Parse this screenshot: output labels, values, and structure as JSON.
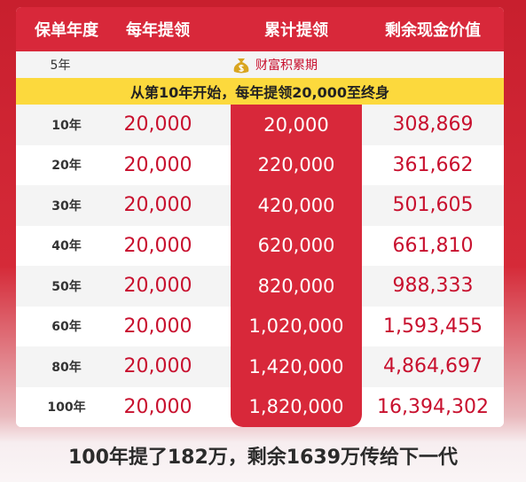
{
  "header": [
    "保单年度",
    "每年提领",
    "累计提领",
    "剩余现金价值"
  ],
  "phase_row": {
    "year": "5年",
    "label": "财富积累期"
  },
  "banner": "从第10年开始，每年提领20,000至终身",
  "rows": [
    [
      "10年",
      "20,000",
      "20,000",
      "308,869"
    ],
    [
      "20年",
      "20,000",
      "220,000",
      "361,662"
    ],
    [
      "30年",
      "20,000",
      "420,000",
      "501,605"
    ],
    [
      "40年",
      "20,000",
      "620,000",
      "661,810"
    ],
    [
      "50年",
      "20,000",
      "820,000",
      "988,333"
    ],
    [
      "60年",
      "20,000",
      "1,020,000",
      "1,593,455"
    ],
    [
      "80年",
      "20,000",
      "1,420,000",
      "4,864,697"
    ],
    [
      "100年",
      "20,000",
      "1,820,000",
      "16,394,302"
    ]
  ],
  "footer": "100年提了182万，剩余1639万传给下一代"
}
